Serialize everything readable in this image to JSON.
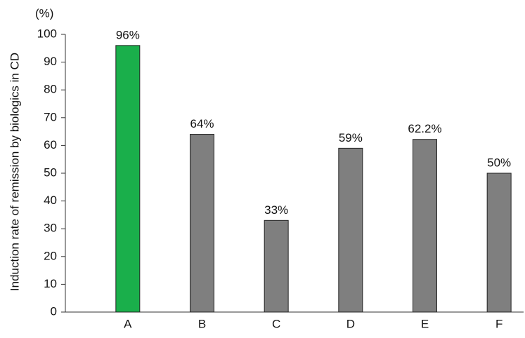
{
  "chart_data": {
    "type": "bar",
    "y_label": "Induction rate of remission by biologics in CD",
    "y_unit": "(%)",
    "categories": [
      "A",
      "B",
      "C",
      "D",
      "E",
      "F"
    ],
    "values": [
      96,
      64,
      33,
      59,
      62.2,
      50
    ],
    "value_labels": [
      "96%",
      "64%",
      "33%",
      "59%",
      "62.2%",
      "50%"
    ],
    "colors": [
      "#1aaf4b",
      "#7f7f7f",
      "#7f7f7f",
      "#7f7f7f",
      "#7f7f7f",
      "#7f7f7f"
    ],
    "ylim": [
      0,
      100
    ],
    "yticks": [
      0,
      10,
      20,
      30,
      40,
      50,
      60,
      70,
      80,
      90,
      100
    ],
    "grid": false
  }
}
